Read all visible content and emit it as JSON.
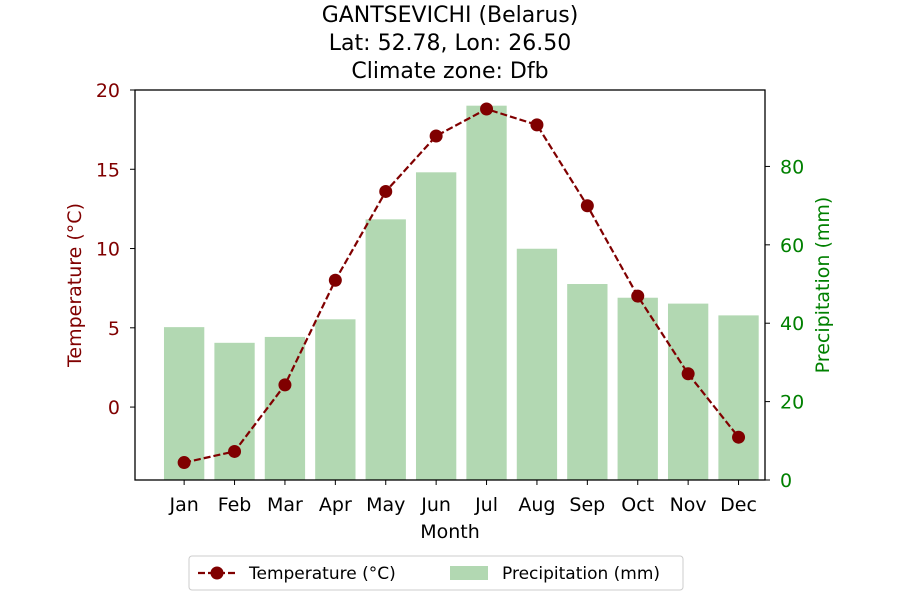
{
  "chart_data": {
    "type": "bar+line",
    "title_lines": [
      "GANTSEVICHI (Belarus)",
      "Lat: 52.78, Lon: 26.50",
      "Climate zone: Dfb"
    ],
    "xlabel": "Month",
    "ylabel_left": "Temperature (°C)",
    "ylabel_right": "Precipitation (mm)",
    "categories": [
      "Jan",
      "Feb",
      "Mar",
      "Apr",
      "May",
      "Jun",
      "Jul",
      "Aug",
      "Sep",
      "Oct",
      "Nov",
      "Dec"
    ],
    "temperature": [
      -3.5,
      -2.8,
      1.4,
      8.0,
      13.6,
      17.1,
      18.8,
      17.8,
      12.7,
      7.0,
      2.1,
      -1.9
    ],
    "precipitation": [
      39,
      35,
      36.5,
      41,
      66.5,
      78.5,
      95.5,
      59,
      50,
      46.5,
      45,
      42
    ],
    "ylim_left": [
      -4.6,
      20
    ],
    "ylim_right": [
      0,
      99.5
    ],
    "yticks_left": [
      0,
      5,
      10,
      15,
      20
    ],
    "yticks_right": [
      0,
      20,
      40,
      60,
      80
    ],
    "legend": {
      "placement": "bottom-center",
      "entries": [
        "Temperature (°C)",
        "Precipitation (mm)"
      ]
    },
    "colors": {
      "temperature": "#800000",
      "precipitation": "#b2d8b2",
      "right_axis": "#008000",
      "left_axis": "#800000"
    },
    "grid": false
  }
}
